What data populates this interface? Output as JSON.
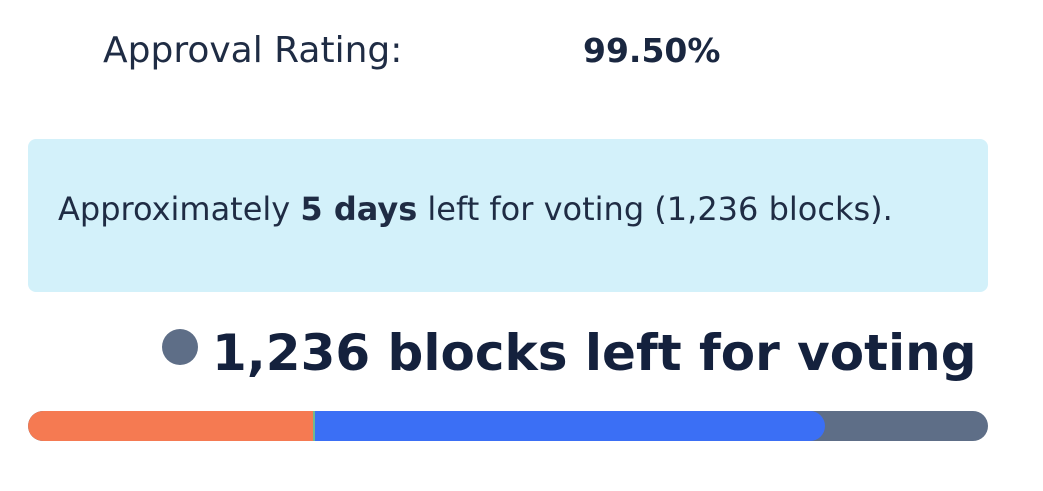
{
  "approval": {
    "label": "Approval Rating:",
    "value": "99.50%"
  },
  "info": {
    "prefix": "Approximately ",
    "highlight": "5 days",
    "suffix": " left for voting (1,236 blocks)."
  },
  "blocks": {
    "text": "1,236 blocks left for voting",
    "dot_color": "#5e6e87"
  },
  "progress": {
    "segments": [
      {
        "name": "orange",
        "color": "#f57a52",
        "fraction": 0.297
      },
      {
        "name": "blue",
        "color": "#3b6ff5",
        "fraction": 0.533
      }
    ],
    "track_color": "#5e6e87"
  }
}
